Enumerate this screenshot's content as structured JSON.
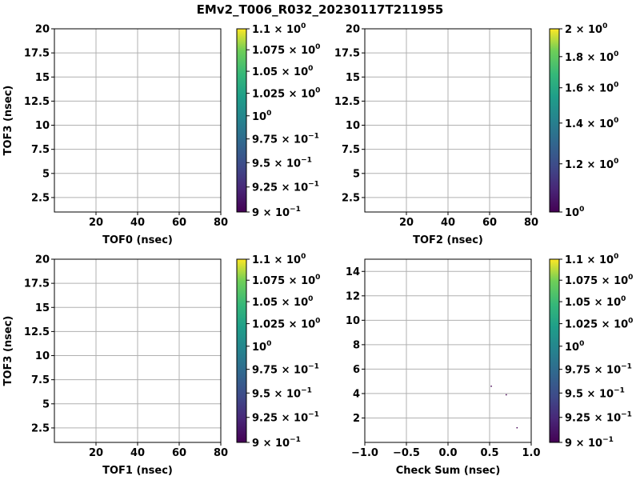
{
  "figure": {
    "title": "EMv2_T006_R032_20230117T211955"
  },
  "chart_data": [
    {
      "type": "heatmap",
      "xlabel": "TOF0 (nsec)",
      "ylabel": "TOF3 (nsec)",
      "xlim": [
        0,
        80
      ],
      "ylim": [
        1,
        20
      ],
      "xticks": [
        20,
        40,
        60,
        80
      ],
      "yticks": [
        2.5,
        5.0,
        7.5,
        10.0,
        12.5,
        15.0,
        17.5,
        20.0
      ],
      "grid": true,
      "points": [],
      "colorbar": {
        "colormap": "viridis",
        "scale": "log",
        "lim": [
          0.9,
          1.1
        ],
        "ticks": [
          {
            "value": 1.1,
            "mant": "1.1",
            "exp": "0"
          },
          {
            "value": 1.075,
            "mant": "1.075",
            "exp": "0"
          },
          {
            "value": 1.05,
            "mant": "1.05",
            "exp": "0"
          },
          {
            "value": 1.025,
            "mant": "1.025",
            "exp": "0"
          },
          {
            "value": 1.0,
            "mant": "",
            "exp": "0"
          },
          {
            "value": 0.975,
            "mant": "9.75",
            "exp": "−1"
          },
          {
            "value": 0.95,
            "mant": "9.5",
            "exp": "−1"
          },
          {
            "value": 0.925,
            "mant": "9.25",
            "exp": "−1"
          },
          {
            "value": 0.9,
            "mant": "9",
            "exp": "−1"
          }
        ]
      }
    },
    {
      "type": "heatmap",
      "xlabel": "TOF2 (nsec)",
      "ylabel": "",
      "xlim": [
        0,
        80
      ],
      "ylim": [
        1,
        20
      ],
      "xticks": [
        20,
        40,
        60,
        80
      ],
      "yticks": [
        2.5,
        5.0,
        7.5,
        10.0,
        12.5,
        15.0,
        17.5,
        20.0
      ],
      "grid": true,
      "points": [],
      "colorbar": {
        "colormap": "viridis",
        "scale": "log",
        "lim": [
          1.0,
          2.0
        ],
        "ticks": [
          {
            "value": 2.0,
            "mant": "2",
            "exp": "0"
          },
          {
            "value": 1.8,
            "mant": "1.8",
            "exp": "0"
          },
          {
            "value": 1.6,
            "mant": "1.6",
            "exp": "0"
          },
          {
            "value": 1.4,
            "mant": "1.4",
            "exp": "0"
          },
          {
            "value": 1.2,
            "mant": "1.2",
            "exp": "0"
          },
          {
            "value": 1.0,
            "mant": "",
            "exp": "0"
          }
        ]
      }
    },
    {
      "type": "heatmap",
      "xlabel": "TOF1 (nsec)",
      "ylabel": "TOF3 (nsec)",
      "xlim": [
        0,
        80
      ],
      "ylim": [
        1,
        20
      ],
      "xticks": [
        20,
        40,
        60,
        80
      ],
      "yticks": [
        2.5,
        5.0,
        7.5,
        10.0,
        12.5,
        15.0,
        17.5,
        20.0
      ],
      "grid": true,
      "points": [],
      "colorbar": {
        "colormap": "viridis",
        "scale": "log",
        "lim": [
          0.9,
          1.1
        ],
        "ticks": [
          {
            "value": 1.1,
            "mant": "1.1",
            "exp": "0"
          },
          {
            "value": 1.075,
            "mant": "1.075",
            "exp": "0"
          },
          {
            "value": 1.05,
            "mant": "1.05",
            "exp": "0"
          },
          {
            "value": 1.025,
            "mant": "1.025",
            "exp": "0"
          },
          {
            "value": 1.0,
            "mant": "",
            "exp": "0"
          },
          {
            "value": 0.975,
            "mant": "9.75",
            "exp": "−1"
          },
          {
            "value": 0.95,
            "mant": "9.5",
            "exp": "−1"
          },
          {
            "value": 0.925,
            "mant": "9.25",
            "exp": "−1"
          },
          {
            "value": 0.9,
            "mant": "9",
            "exp": "−1"
          }
        ]
      }
    },
    {
      "type": "heatmap",
      "xlabel": "Check Sum (nsec)",
      "ylabel": "",
      "xlim": [
        -1.0,
        1.0
      ],
      "ylim": [
        0,
        15
      ],
      "xticks": [
        -1.0,
        -0.5,
        0.0,
        0.5,
        1.0
      ],
      "xtick_labels": [
        "−1.0",
        "−0.5",
        "0.0",
        "0.5",
        "1.0"
      ],
      "yticks": [
        2,
        4,
        6,
        8,
        10,
        12,
        14
      ],
      "grid": true,
      "points": [
        {
          "x": 0.52,
          "y": 4.6
        },
        {
          "x": 0.7,
          "y": 3.9
        },
        {
          "x": 0.83,
          "y": 1.2
        }
      ],
      "colorbar": {
        "colormap": "viridis",
        "scale": "log",
        "lim": [
          0.9,
          1.1
        ],
        "ticks": [
          {
            "value": 1.1,
            "mant": "1.1",
            "exp": "0"
          },
          {
            "value": 1.075,
            "mant": "1.075",
            "exp": "0"
          },
          {
            "value": 1.05,
            "mant": "1.05",
            "exp": "0"
          },
          {
            "value": 1.025,
            "mant": "1.025",
            "exp": "0"
          },
          {
            "value": 1.0,
            "mant": "",
            "exp": "0"
          },
          {
            "value": 0.975,
            "mant": "9.75",
            "exp": "−1"
          },
          {
            "value": 0.95,
            "mant": "9.5",
            "exp": "−1"
          },
          {
            "value": 0.925,
            "mant": "9.25",
            "exp": "−1"
          },
          {
            "value": 0.9,
            "mant": "9",
            "exp": "−1"
          }
        ]
      }
    }
  ]
}
